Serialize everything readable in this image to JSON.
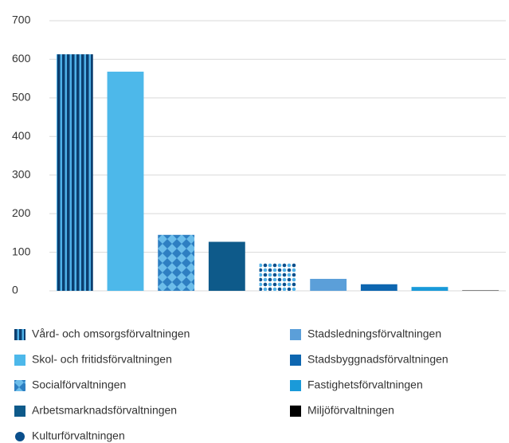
{
  "chart_data": {
    "type": "bar",
    "series": [
      {
        "name": "Vård- och omsorgsförvaltningen",
        "color": "#0b3e6f",
        "color2": "#4fb1e8",
        "pattern": "stripes",
        "values": [
          613
        ]
      },
      {
        "name": "Skol- och fritidsförvaltningen",
        "color": "#4db8ea",
        "values": [
          568
        ]
      },
      {
        "name": "Socialförvaltningen",
        "color": "#2e7fc2",
        "color2": "#6cbdea",
        "pattern": "diamonds",
        "values": [
          145
        ]
      },
      {
        "name": "Arbetsmarknadsförvaltningen",
        "color": "#0e5a8a",
        "values": [
          127
        ]
      },
      {
        "name": "Kulturförvaltningen",
        "color": "#0a4f8c",
        "color2": "#4fb1e8",
        "pattern": "dots",
        "marker": "circle",
        "values": [
          72
        ]
      },
      {
        "name": "Stadsledningsförvaltningen",
        "color": "#5b9fd9",
        "values": [
          31
        ]
      },
      {
        "name": "Stadsbyggnadsförvaltningen",
        "color": "#0d66b0",
        "values": [
          17
        ]
      },
      {
        "name": "Fastighetsförvaltningen",
        "color": "#1a9ad9",
        "values": [
          10
        ]
      },
      {
        "name": "Miljöförvaltningen",
        "color": "#000000",
        "values": [
          1
        ]
      }
    ],
    "ylim": [
      0,
      700
    ],
    "yticks": [
      0,
      100,
      200,
      300,
      400,
      500,
      600,
      700
    ],
    "grid": true
  }
}
